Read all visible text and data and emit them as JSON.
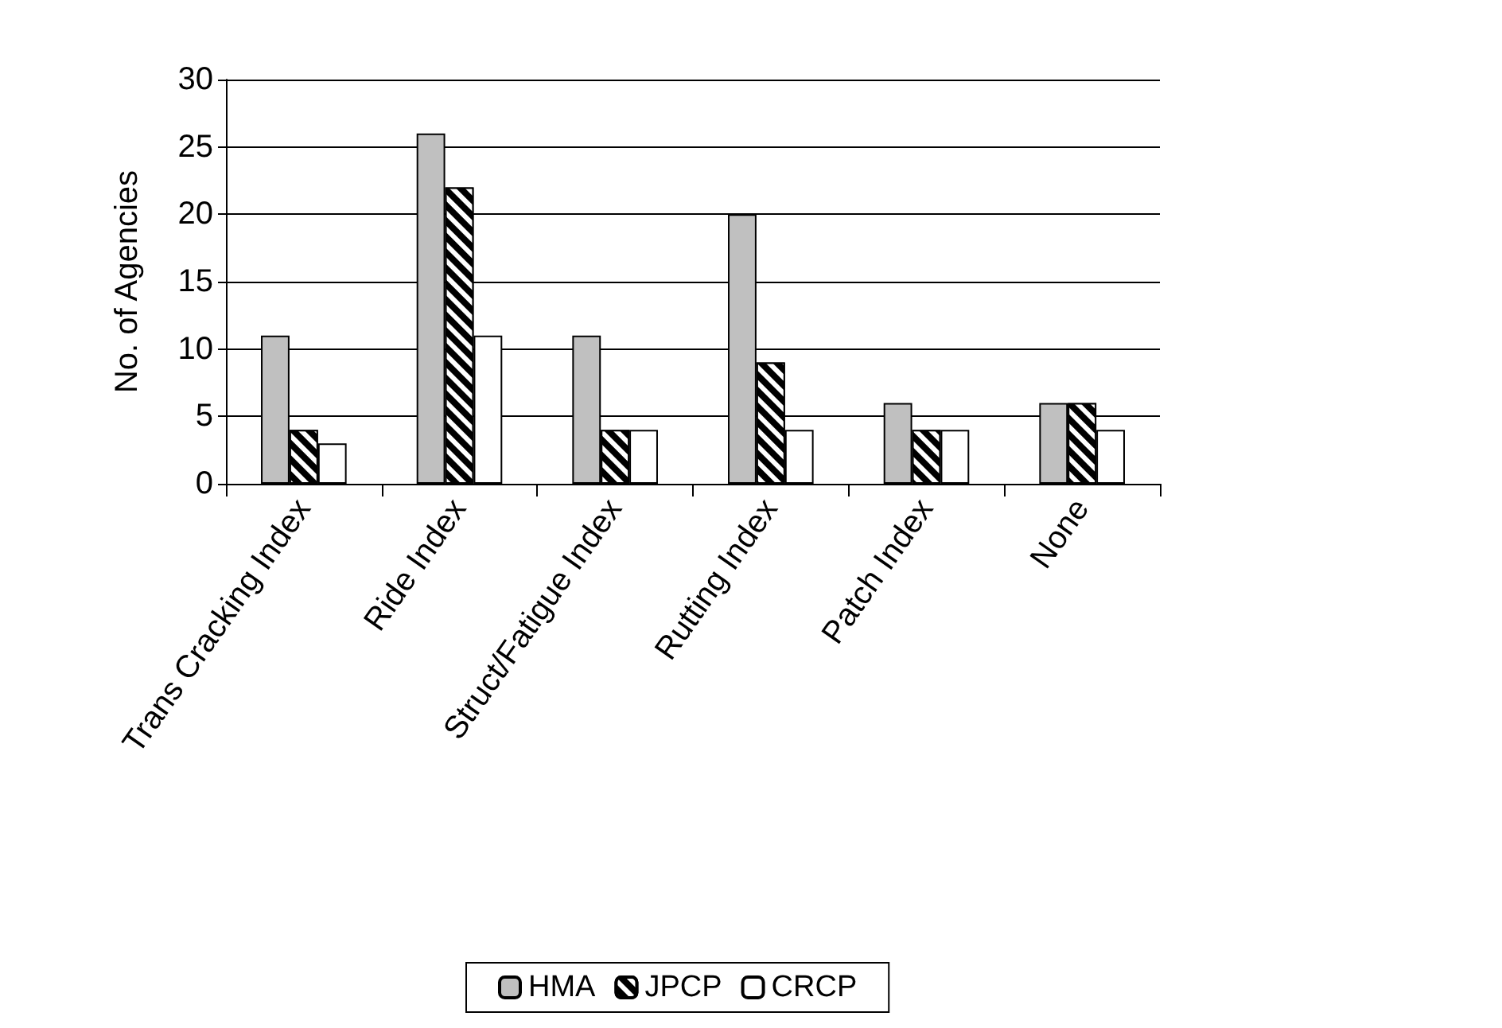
{
  "chart_data": {
    "type": "bar",
    "ylabel": "No. of Agencies",
    "categories": [
      "Trans Cracking Index",
      "Ride Index",
      "Struct/Fatigue Index",
      "Rutting Index",
      "Patch Index",
      "None"
    ],
    "series": [
      {
        "name": "HMA",
        "color": "#c0c0c0",
        "values": [
          11,
          26,
          11,
          20,
          6,
          6
        ]
      },
      {
        "name": "JPCP",
        "color": "#000000",
        "values": [
          4,
          22,
          4,
          9,
          4,
          6
        ]
      },
      {
        "name": "CRCP",
        "color": "#ffffff",
        "values": [
          3,
          11,
          4,
          4,
          4,
          4
        ]
      }
    ],
    "ylim": [
      0,
      30
    ],
    "yticks": [
      0,
      5,
      10,
      15,
      20,
      25,
      30
    ],
    "grid": "y",
    "legend": "bottom"
  }
}
